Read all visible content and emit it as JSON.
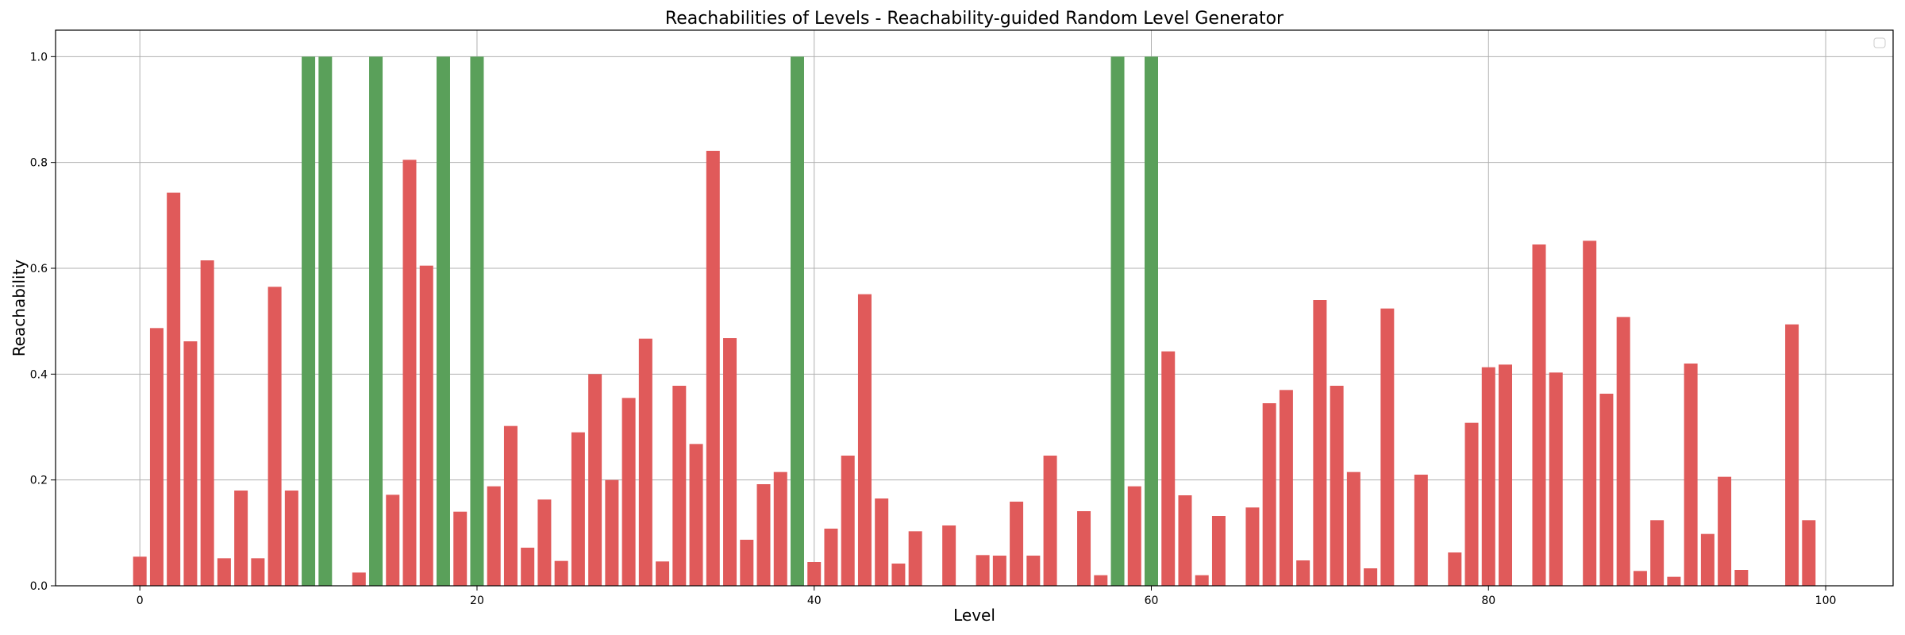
{
  "chart_data": {
    "type": "bar",
    "title": "Reachabilities of Levels - Reachability-guided Random Level Generator",
    "xlabel": "Level",
    "ylabel": "Reachability",
    "xlim": [
      -5,
      104
    ],
    "ylim": [
      0,
      1.05
    ],
    "x_ticks": [
      "0",
      "20",
      "40",
      "60",
      "80",
      "100"
    ],
    "y_ticks": [
      "0.0",
      "0.2",
      "0.4",
      "0.6",
      "0.8",
      "1.0"
    ],
    "grid": true,
    "legend": "top-right (empty)",
    "colors": {
      "reachable": "#5aa05a",
      "partial": "#e05a5a",
      "grid": "#b0b0b0",
      "axis": "#000000"
    },
    "x": [
      0,
      1,
      2,
      3,
      4,
      5,
      6,
      7,
      8,
      9,
      10,
      11,
      12,
      13,
      14,
      15,
      16,
      17,
      18,
      19,
      20,
      21,
      22,
      23,
      24,
      25,
      26,
      27,
      28,
      29,
      30,
      31,
      32,
      33,
      34,
      35,
      36,
      37,
      38,
      39,
      40,
      41,
      42,
      43,
      44,
      45,
      46,
      47,
      48,
      49,
      50,
      51,
      52,
      53,
      54,
      55,
      56,
      57,
      58,
      59,
      60,
      61,
      62,
      63,
      64,
      65,
      66,
      67,
      68,
      69,
      70,
      71,
      72,
      73,
      74,
      75,
      76,
      77,
      78,
      79,
      80,
      81,
      82,
      83,
      84,
      85,
      86,
      87,
      88,
      89,
      90,
      91,
      92,
      93,
      94,
      95,
      96,
      97,
      98,
      99
    ],
    "values": [
      0.055,
      0.487,
      0.743,
      0.462,
      0.615,
      0.052,
      0.18,
      0.052,
      0.565,
      0.18,
      1.0,
      1.0,
      0.0,
      0.025,
      1.0,
      0.172,
      0.805,
      0.605,
      1.0,
      0.14,
      1.0,
      0.188,
      0.302,
      0.072,
      0.163,
      0.047,
      0.29,
      0.4,
      0.2,
      0.355,
      0.467,
      0.046,
      0.378,
      0.268,
      0.822,
      0.468,
      0.087,
      0.192,
      0.215,
      1.0,
      0.045,
      0.108,
      0.246,
      0.551,
      0.165,
      0.042,
      0.103,
      0.0,
      0.114,
      0.0,
      0.058,
      0.057,
      0.159,
      0.057,
      0.246,
      0.0,
      0.141,
      0.02,
      1.0,
      0.188,
      1.0,
      0.443,
      0.171,
      0.02,
      0.132,
      0.0,
      0.148,
      0.345,
      0.37,
      0.048,
      0.54,
      0.378,
      0.215,
      0.033,
      0.524,
      0.0,
      0.21,
      0.0,
      0.063,
      0.308,
      0.413,
      0.418,
      0.0,
      0.645,
      0.403,
      0.0,
      0.652,
      0.363,
      0.508,
      0.028,
      0.124,
      0.017,
      0.42,
      0.098,
      0.206,
      0.03,
      0.0,
      0.0,
      0.494,
      0.124
    ]
  }
}
